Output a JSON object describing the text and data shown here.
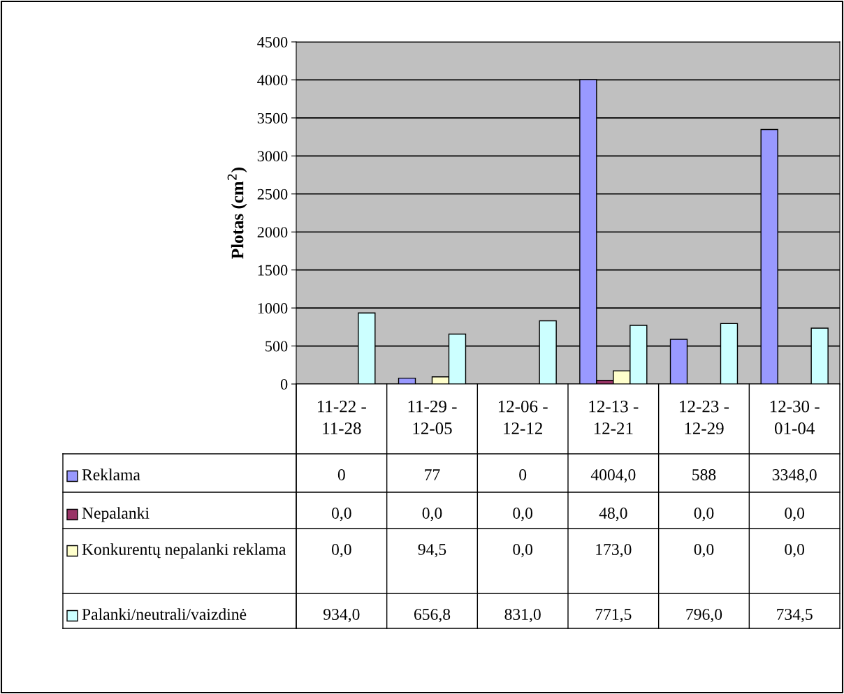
{
  "chart_data": {
    "type": "bar",
    "ylabel": "Plotas (cm$^{2}$)",
    "categories": [
      "11-22 -\n11-28",
      "11-29 -\n12-05",
      "12-06 -\n12-12",
      "12-13 -\n12-21",
      "12-23 -\n12-29",
      "12-30 -\n01-04"
    ],
    "series": [
      {
        "name": "Reklama",
        "color": "#9999ff",
        "values": [
          0,
          77,
          0,
          4004,
          588,
          3348
        ],
        "value_labels": [
          "0",
          "77",
          "0",
          "4004,0",
          "588",
          "3348,0"
        ]
      },
      {
        "name": "Nepalanki",
        "color": "#993366",
        "values": [
          0,
          0,
          0,
          48,
          0,
          0
        ],
        "value_labels": [
          "0,0",
          "0,0",
          "0,0",
          "48,0",
          "0,0",
          "0,0"
        ]
      },
      {
        "name": "Konkurentų nepalanki reklama",
        "color": "#ffffcc",
        "values": [
          0,
          94.5,
          0,
          173,
          0,
          0
        ],
        "value_labels": [
          "0,0",
          "94,5",
          "0,0",
          "173,0",
          "0,0",
          "0,0"
        ]
      },
      {
        "name": "Palanki/neutrali/vaizdinė",
        "color": "#ccffff",
        "values": [
          934,
          656.8,
          831,
          771.5,
          796,
          734.5
        ],
        "value_labels": [
          "934,0",
          "656,8",
          "831,0",
          "771,5",
          "796,0",
          "734,5"
        ]
      }
    ],
    "ylim": [
      0,
      4500
    ],
    "yticks": [
      0,
      500,
      1000,
      1500,
      2000,
      2500,
      3000,
      3500,
      4000,
      4500
    ],
    "grid": "y",
    "legend": "bottom"
  }
}
